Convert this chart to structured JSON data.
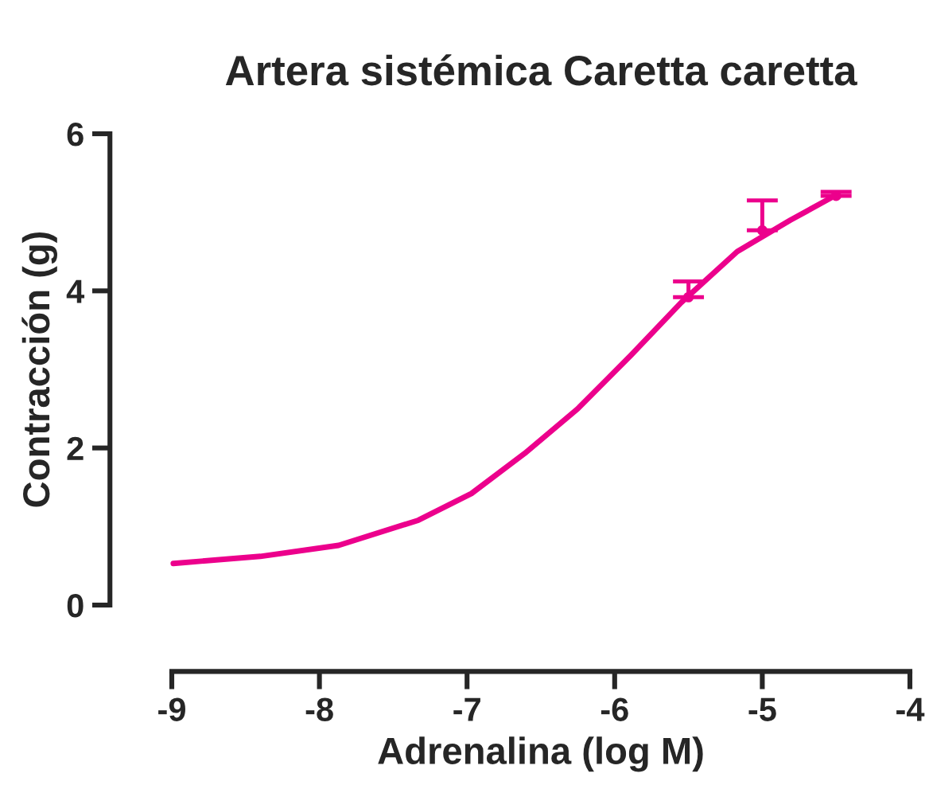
{
  "chart_data": {
    "type": "line",
    "title": "Artera sistémica Caretta caretta",
    "xlabel": "Adrenalina (log M)",
    "ylabel": "Contracción (g)",
    "xlim": [
      -9,
      -4
    ],
    "xticks": [
      -9,
      -8,
      -7,
      -6,
      -5,
      -4
    ],
    "ylim": [
      0,
      6
    ],
    "yticks": [
      0,
      2,
      4,
      6
    ],
    "grid": false,
    "series": [
      {
        "type": "line",
        "color": "#ec008c",
        "x": [
          -8.99,
          -8.4,
          -7.87,
          -7.33,
          -6.97,
          -6.61,
          -6.25,
          -5.89,
          -5.55,
          -5.17,
          -4.81,
          -4.51
        ],
        "values": [
          0.53,
          0.62,
          0.76,
          1.08,
          1.42,
          1.93,
          2.5,
          3.18,
          3.85,
          4.5,
          4.9,
          5.21
        ]
      },
      {
        "type": "scatter",
        "color": "#ec008c",
        "marker": "circle",
        "x": [
          -5.5,
          -5,
          -4.5
        ],
        "values": [
          3.92,
          4.77,
          5.21
        ],
        "errors": [
          [
            3.92,
            4.12
          ],
          [
            4.77,
            5.15
          ],
          [
            5.21,
            5.26
          ]
        ]
      }
    ]
  }
}
